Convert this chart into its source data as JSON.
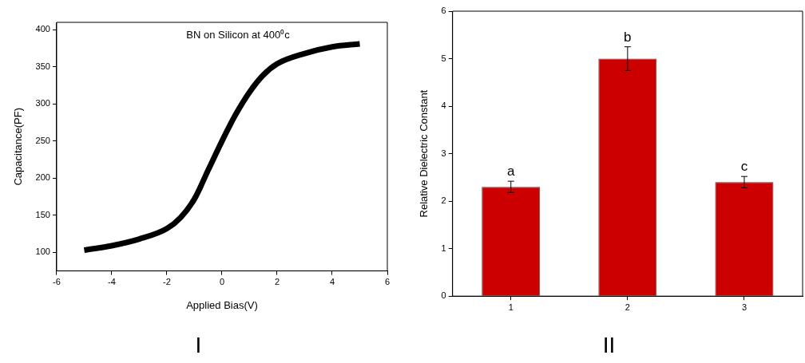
{
  "chart_data": [
    {
      "type": "line",
      "title": "I",
      "xlabel": "Applied Bias(V)",
      "ylabel": "Capacitance(PF)",
      "annotations": [
        "BN on Silicon at 400⁰c"
      ],
      "x": [
        -5,
        -4,
        -3,
        -2,
        -1.5,
        -1,
        -0.5,
        0,
        0.5,
        1,
        1.5,
        2,
        3,
        4,
        5
      ],
      "series": [
        {
          "color": "#000000",
          "values": [
            103,
            109,
            118,
            132,
            147,
            172,
            211,
            250,
            286,
            316,
            339,
            354,
            368,
            377,
            381
          ]
        }
      ],
      "xlim": [
        -6,
        6
      ],
      "xticks": [
        -6,
        -4,
        -2,
        0,
        2,
        4,
        6
      ],
      "ylim": [
        75,
        410
      ],
      "yticks": [
        100,
        150,
        200,
        250,
        300,
        350,
        400
      ],
      "marker": "none",
      "grid": false,
      "legend": false
    },
    {
      "type": "bar",
      "title": "II",
      "ylabel": "Relative Dielectric Constant",
      "categories": [
        "1",
        "2",
        "3"
      ],
      "series": [
        {
          "color": "#cc0000",
          "values": [
            2.3,
            5.0,
            2.4
          ],
          "errors": [
            0.12,
            0.25,
            0.12
          ]
        }
      ],
      "annotations": [
        "a",
        "b",
        "c"
      ],
      "ylim": [
        0,
        6
      ],
      "yticks": [
        0,
        1,
        2,
        3,
        4,
        5,
        6
      ],
      "grid": false,
      "legend": false
    }
  ]
}
